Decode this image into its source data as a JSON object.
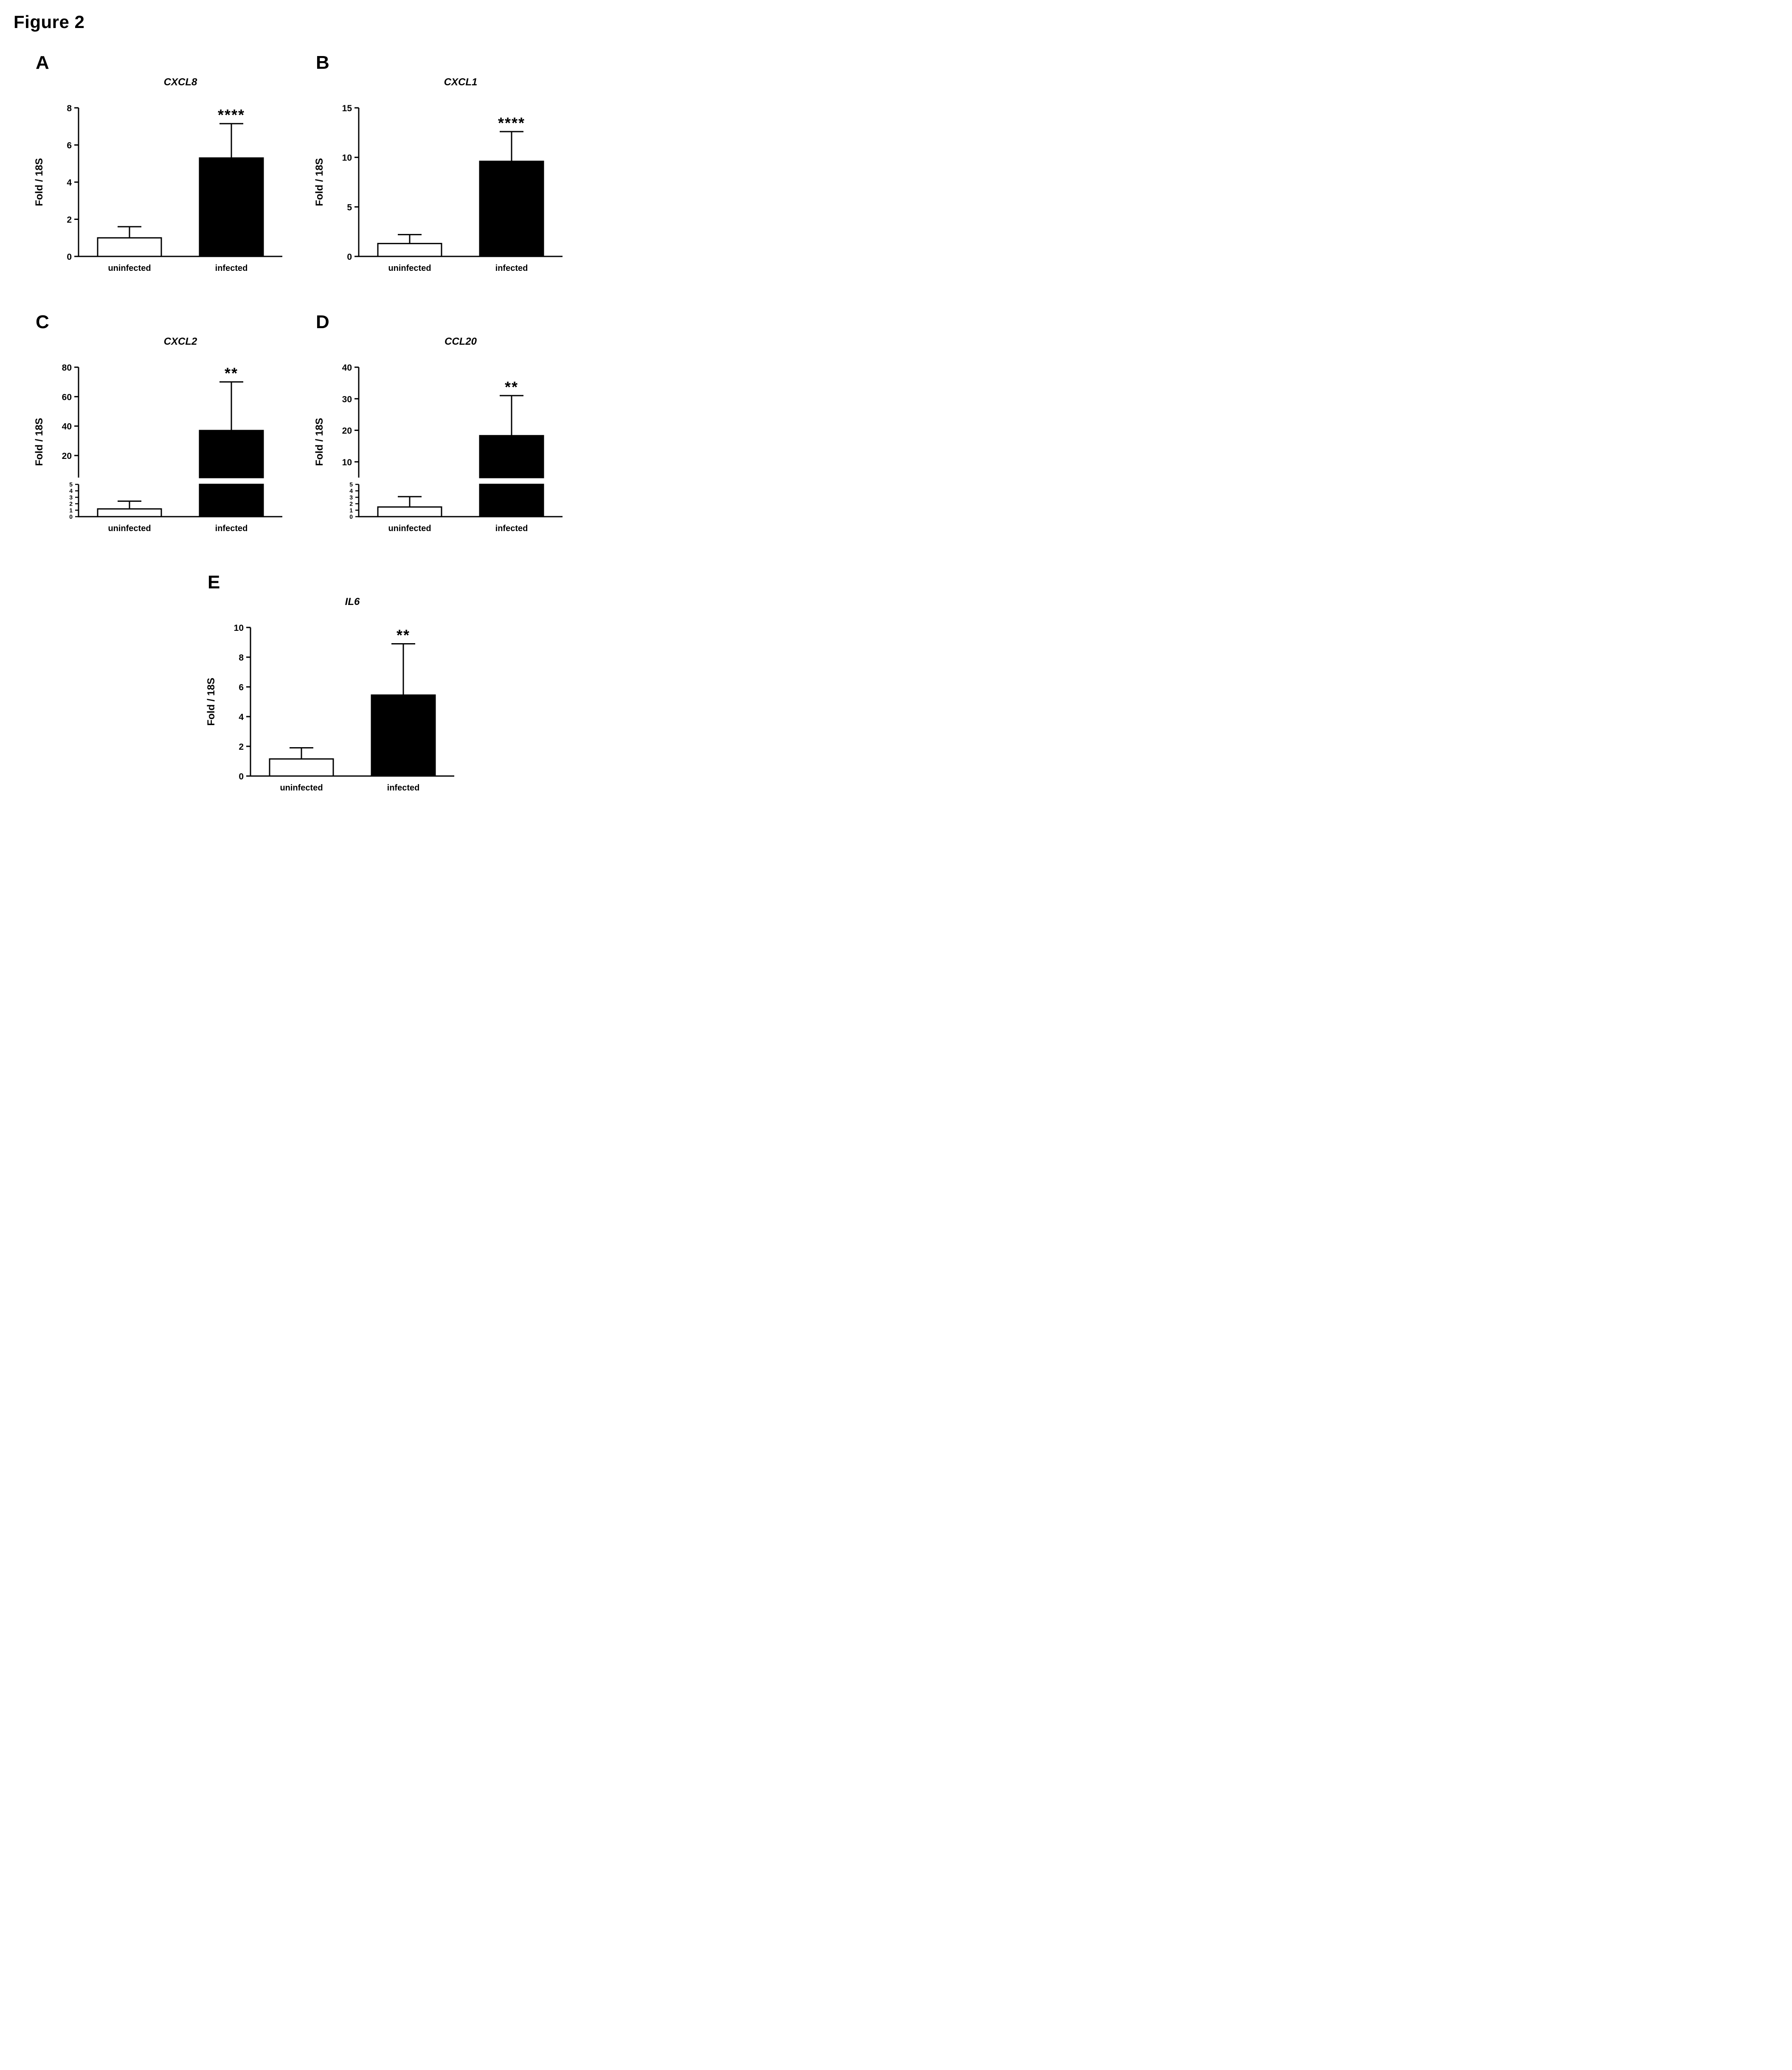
{
  "figure_title": "Figure 2",
  "style": {
    "bar_fill_colors": [
      "#ffffff",
      "#000000"
    ],
    "bar_border_color": "#000000",
    "axis_color": "#000000",
    "background": "#ffffff"
  },
  "chart_data": [
    {
      "panel": "A",
      "type": "bar",
      "title": "CXCL8",
      "ylabel": "Fold / 18S",
      "xlabel": "",
      "categories": [
        "uninfected",
        "infected"
      ],
      "values": [
        1.0,
        5.3
      ],
      "errors": [
        0.6,
        1.85
      ],
      "significance": "****",
      "significance_on": "infected",
      "legend": "none",
      "grid": false,
      "axis": {
        "broken": false,
        "ylim": [
          0,
          8
        ],
        "yticks": [
          0,
          2,
          4,
          6,
          8
        ]
      }
    },
    {
      "panel": "B",
      "type": "bar",
      "title": "CXCL1",
      "ylabel": "Fold / 18S",
      "xlabel": "",
      "categories": [
        "uninfected",
        "infected"
      ],
      "values": [
        1.3,
        9.6
      ],
      "errors": [
        0.9,
        3.0
      ],
      "significance": "****",
      "significance_on": "infected",
      "legend": "none",
      "grid": false,
      "axis": {
        "broken": false,
        "ylim": [
          0,
          15
        ],
        "yticks": [
          0,
          5,
          10,
          15
        ]
      }
    },
    {
      "panel": "C",
      "type": "bar",
      "title": "CXCL2",
      "ylabel": "Fold / 18S",
      "xlabel": "",
      "categories": [
        "uninfected",
        "infected"
      ],
      "values": [
        1.2,
        37
      ],
      "errors": [
        1.2,
        33
      ],
      "significance": "**",
      "significance_on": "infected",
      "legend": "none",
      "grid": false,
      "axis": {
        "broken": true,
        "break_value": 5,
        "upper": {
          "ylim": [
            5,
            80
          ],
          "yticks": [
            20,
            40,
            60,
            80
          ]
        },
        "lower": {
          "ylim": [
            0,
            5
          ],
          "yticks": [
            0,
            1,
            2,
            3,
            4,
            5
          ]
        }
      }
    },
    {
      "panel": "D",
      "type": "bar",
      "title": "CCL20",
      "ylabel": "Fold / 18S",
      "xlabel": "",
      "categories": [
        "uninfected",
        "infected"
      ],
      "values": [
        1.5,
        18.3
      ],
      "errors": [
        1.6,
        12.7
      ],
      "significance": "**",
      "significance_on": "infected",
      "legend": "none",
      "grid": false,
      "axis": {
        "broken": true,
        "break_value": 5,
        "upper": {
          "ylim": [
            5,
            40
          ],
          "yticks": [
            10,
            20,
            30,
            40
          ]
        },
        "lower": {
          "ylim": [
            0,
            5
          ],
          "yticks": [
            0,
            1,
            2,
            3,
            4,
            5
          ]
        }
      }
    },
    {
      "panel": "E",
      "type": "bar",
      "title": "IL6",
      "ylabel": "Fold / 18S",
      "xlabel": "",
      "categories": [
        "uninfected",
        "infected"
      ],
      "values": [
        1.15,
        5.45
      ],
      "errors": [
        0.75,
        3.45
      ],
      "significance": "**",
      "significance_on": "infected",
      "legend": "none",
      "grid": false,
      "axis": {
        "broken": false,
        "ylim": [
          0,
          10
        ],
        "yticks": [
          0,
          2,
          4,
          6,
          8,
          10
        ]
      }
    }
  ]
}
